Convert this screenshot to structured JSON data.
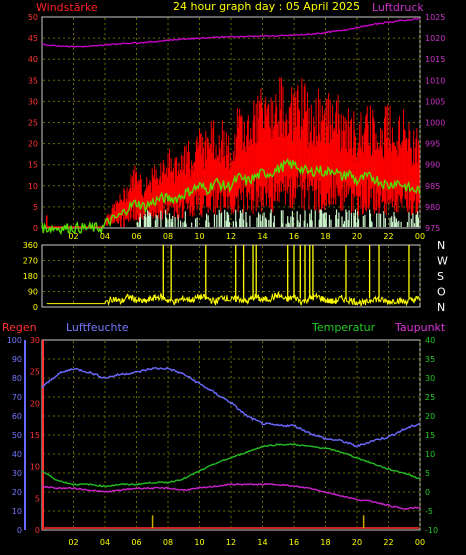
{
  "header": {
    "title": "24 hour graph day : 05 April 2025",
    "left_label": "Windstärke",
    "right_label": "Luftdruck"
  },
  "colors": {
    "wind_max": "#ff0000",
    "wind_avg": "#55dd00",
    "gust_bars": "#c8f0c8",
    "pressure": "#cc00cc",
    "direction": "#ffff00",
    "humidity": "#6a6aff",
    "temperature": "#22bb22",
    "dewpoint": "#cc22cc",
    "rain": "#ccaa00",
    "grid": "#6b6b00",
    "frame": "#cccccc"
  },
  "x_ticks": [
    "02",
    "04",
    "06",
    "08",
    "10",
    "12",
    "14",
    "16",
    "18",
    "20",
    "22",
    "00"
  ],
  "panel_wind": {
    "left_ticks": [
      "0",
      "5",
      "10",
      "15",
      "20",
      "25",
      "30",
      "35",
      "40",
      "45",
      "50"
    ],
    "right_ticks": [
      "975",
      "980",
      "985",
      "990",
      "995",
      "1000",
      "1005",
      "1010",
      "1015",
      "1020",
      "1025"
    ]
  },
  "panel_dir": {
    "left_ticks": [
      "0",
      "90",
      "180",
      "270",
      "360"
    ],
    "right_labels": [
      "N",
      "W",
      "S",
      "O",
      "N"
    ]
  },
  "panel_climate": {
    "rain_label": "Regen",
    "humidity_label": "Luftfeuchte",
    "temp_label": "Temperatur",
    "dew_label": "Taupunkt",
    "humidity_ticks": [
      "0",
      "10",
      "20",
      "30",
      "40",
      "50",
      "60",
      "70",
      "80",
      "90",
      "100"
    ],
    "rain_ticks": [
      "0",
      "5",
      "10",
      "15",
      "20",
      "25",
      "30"
    ],
    "temp_ticks": [
      "-10",
      "-5",
      "0",
      "5",
      "10",
      "15",
      "20",
      "25",
      "30",
      "35",
      "40"
    ]
  },
  "chart_data": [
    {
      "type": "line",
      "title": "Windstärke / Luftdruck",
      "x_unit": "hour",
      "xlim": [
        0,
        24
      ],
      "ylim_left": [
        0,
        50
      ],
      "ylim_right": [
        975,
        1025
      ],
      "series": [
        {
          "name": "Windstärke",
          "axis": "left",
          "x": [
            0,
            1,
            2,
            3,
            3.9,
            4,
            4.5,
            5,
            5.5,
            6,
            6.5,
            7,
            7.5,
            8,
            8.5,
            9,
            9.5,
            10,
            10.5,
            11,
            11.5,
            12,
            12.5,
            13,
            13.5,
            14,
            14.5,
            15,
            15.5,
            16,
            16.5,
            17,
            17.5,
            18,
            18.5,
            19,
            19.5,
            20,
            20.5,
            21,
            21.5,
            22,
            22.5,
            23,
            23.5,
            24
          ],
          "values": [
            0,
            0,
            0,
            0,
            0,
            2,
            4,
            6,
            8,
            12,
            8,
            10,
            12,
            14,
            12,
            16,
            14,
            18,
            16,
            20,
            18,
            16,
            22,
            20,
            22,
            24,
            22,
            26,
            24,
            24,
            26,
            22,
            24,
            22,
            26,
            20,
            22,
            18,
            22,
            20,
            18,
            22,
            18,
            20,
            16,
            18
          ]
        },
        {
          "name": "Mittelwind",
          "axis": "left",
          "x": [
            0,
            3.9,
            4,
            4.5,
            5,
            5.5,
            6,
            6.5,
            7,
            7.5,
            8,
            8.5,
            9,
            9.5,
            10,
            10.5,
            11,
            11.5,
            12,
            12.5,
            13,
            13.5,
            14,
            14.5,
            15,
            15.5,
            16,
            16.5,
            17,
            17.5,
            18,
            18.5,
            19,
            19.5,
            20,
            20.5,
            21,
            21.5,
            22,
            22.5,
            23,
            23.5,
            24
          ],
          "values": [
            0,
            0,
            1,
            2,
            3,
            5,
            6,
            5,
            6,
            7,
            7,
            7,
            8,
            9,
            10,
            9,
            11,
            10,
            10,
            12,
            11,
            12,
            13,
            13,
            14,
            15,
            15,
            14,
            13,
            14,
            13,
            14,
            12,
            13,
            11,
            12,
            12,
            11,
            10,
            11,
            10,
            9,
            9
          ]
        },
        {
          "name": "Luftdruck",
          "axis": "right",
          "x": [
            0,
            1,
            2,
            3,
            4,
            5,
            6,
            7,
            8,
            9,
            10,
            11,
            12,
            13,
            14,
            15,
            16,
            17,
            18,
            19,
            20,
            21,
            22,
            23,
            24
          ],
          "values": [
            1018.5,
            1018.2,
            1018.0,
            1018.0,
            1018.4,
            1018.7,
            1018.9,
            1019.1,
            1019.5,
            1019.8,
            1020.0,
            1020.2,
            1020.3,
            1020.4,
            1020.5,
            1020.5,
            1020.7,
            1020.9,
            1021.3,
            1021.8,
            1022.5,
            1023.2,
            1023.8,
            1024.2,
            1024.6
          ]
        }
      ]
    },
    {
      "type": "line",
      "title": "Windrichtung",
      "x_unit": "hour",
      "xlim": [
        0,
        24
      ],
      "ylim": [
        0,
        360
      ],
      "series": [
        {
          "name": "Windrichtung",
          "x": [
            0,
            4,
            4.5,
            5,
            5.5,
            6,
            6.5,
            7,
            7.5,
            8,
            8.5,
            9,
            9.5,
            10,
            10.5,
            11,
            11.5,
            12,
            12.5,
            13,
            13.5,
            14,
            14.5,
            15,
            15.5,
            16,
            16.5,
            17,
            17.5,
            18,
            18.5,
            19,
            19.5,
            20,
            20.5,
            21,
            21.5,
            22,
            22.5,
            23,
            23.5,
            24
          ],
          "values": [
            20,
            20,
            50,
            30,
            60,
            40,
            30,
            50,
            60,
            40,
            30,
            50,
            40,
            60,
            50,
            30,
            60,
            40,
            50,
            30,
            60,
            40,
            50,
            70,
            40,
            60,
            30,
            50,
            60,
            40,
            30,
            50,
            40,
            30,
            20,
            50,
            40,
            30,
            40,
            30,
            40,
            50
          ]
        }
      ]
    },
    {
      "type": "line",
      "title": "Regen / Luftfeuchte / Temperatur / Taupunkt",
      "x_unit": "hour",
      "xlim": [
        0,
        24
      ],
      "ylim_humidity": [
        0,
        100
      ],
      "ylim_rain": [
        0,
        30
      ],
      "ylim_temp": [
        -10,
        40
      ],
      "series": [
        {
          "name": "Luftfeuchte",
          "axis": "humidity",
          "x": [
            0,
            1,
            2,
            3,
            4,
            5,
            6,
            7,
            8,
            9,
            10,
            11,
            12,
            13,
            14,
            15,
            16,
            17,
            18,
            19,
            20,
            21,
            22,
            23,
            24
          ],
          "values": [
            75,
            82,
            85,
            83,
            80,
            82,
            83,
            85,
            85,
            82,
            77,
            72,
            67,
            60,
            56,
            55,
            55,
            51,
            48,
            47,
            44,
            47,
            49,
            53,
            56
          ]
        },
        {
          "name": "Temperatur",
          "axis": "temp",
          "x": [
            0,
            1,
            2,
            3,
            4,
            5,
            6,
            7,
            8,
            9,
            10,
            11,
            12,
            13,
            14,
            15,
            16,
            17,
            18,
            19,
            20,
            21,
            22,
            23,
            24
          ],
          "values": [
            5.5,
            3,
            2,
            2,
            1.5,
            2,
            2,
            2.5,
            2.5,
            3.5,
            5.5,
            7.5,
            9,
            10.5,
            12,
            12.5,
            12.5,
            12,
            11.5,
            10.5,
            9,
            7.5,
            6,
            5,
            3.5
          ]
        },
        {
          "name": "Taupunkt",
          "axis": "temp",
          "x": [
            0,
            1,
            2,
            3,
            4,
            5,
            6,
            7,
            8,
            9,
            10,
            11,
            12,
            13,
            14,
            15,
            16,
            17,
            18,
            19,
            20,
            21,
            22,
            23,
            24
          ],
          "values": [
            1.5,
            1,
            1,
            0.5,
            0,
            0.5,
            1,
            1,
            1,
            0.5,
            1,
            1.5,
            2,
            2,
            2,
            2,
            1.5,
            1,
            0,
            -1,
            -2,
            -2.5,
            -3.5,
            -4.5,
            -4
          ]
        },
        {
          "name": "Regen",
          "axis": "rain",
          "x": [
            0,
            7,
            7.05,
            20.4,
            20.45,
            24
          ],
          "values": [
            0,
            0,
            2,
            0,
            2,
            0
          ]
        }
      ]
    }
  ]
}
